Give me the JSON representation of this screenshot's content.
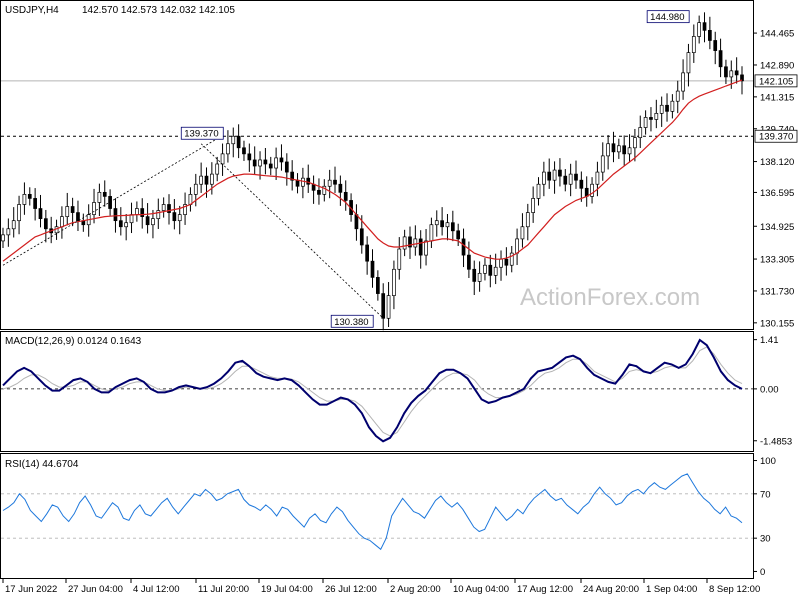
{
  "chart_data": [
    {
      "type": "candlestick",
      "panel": "price",
      "symbol_label": "USDJPY,H4",
      "ohlc_label": "142.570 142.573 142.032 142.105",
      "ylim": [
        129.9,
        146.0
      ],
      "y_ticks": [
        "144.465",
        "142.890",
        "141.315",
        "139.740",
        "138.120",
        "136.595",
        "134.925",
        "133.305",
        "131.730",
        "130.155"
      ],
      "y_tick_values": [
        144.465,
        142.89,
        141.315,
        139.74,
        138.12,
        136.595,
        134.925,
        133.305,
        131.73,
        130.155
      ],
      "current_price_label": "142.105",
      "current_price": 142.105,
      "level_label": "139.370",
      "level": 139.37,
      "annotations": [
        {
          "label": "139.370",
          "value": 139.37
        },
        {
          "label": "130.380",
          "value": 130.38
        },
        {
          "label": "144.980",
          "value": 144.98
        }
      ],
      "watermark": "ActionForex.com",
      "close_series": [
        134.5,
        134.8,
        135.2,
        136.0,
        136.5,
        136.3,
        135.8,
        135.3,
        134.8,
        134.6,
        134.9,
        135.4,
        135.9,
        135.6,
        135.2,
        135.0,
        135.5,
        136.1,
        136.6,
        136.4,
        135.8,
        135.2,
        134.9,
        135.1,
        135.5,
        135.8,
        135.4,
        135.0,
        135.3,
        135.7,
        136.0,
        135.6,
        135.2,
        135.5,
        136.0,
        136.5,
        137.0,
        137.4,
        137.0,
        137.5,
        138.0,
        138.5,
        139.0,
        139.37,
        138.8,
        138.5,
        138.2,
        137.9,
        138.2,
        138.0,
        137.8,
        138.3,
        138.1,
        137.6,
        137.2,
        136.9,
        137.3,
        137.0,
        136.7,
        136.5,
        136.9,
        137.2,
        137.0,
        136.6,
        136.2,
        135.5,
        134.8,
        134.0,
        133.2,
        132.4,
        131.6,
        130.38,
        131.5,
        132.8,
        133.8,
        134.4,
        133.9,
        134.3,
        133.5,
        134.2,
        135.0,
        135.2,
        134.9,
        135.1,
        134.7,
        134.3,
        133.5,
        132.8,
        132.2,
        132.6,
        133.0,
        132.5,
        132.9,
        133.3,
        133.0,
        133.6,
        134.3,
        134.9,
        135.6,
        136.3,
        137.0,
        137.6,
        137.2,
        137.7,
        137.4,
        137.0,
        137.5,
        137.2,
        136.8,
        136.4,
        137.0,
        137.6,
        138.4,
        139.0,
        138.6,
        138.9,
        138.5,
        138.8,
        139.3,
        139.8,
        140.3,
        140.2,
        140.5,
        140.9,
        140.6,
        141.1,
        141.6,
        142.5,
        143.5,
        144.3,
        144.98,
        144.6,
        144.1,
        143.6,
        142.8,
        142.3,
        142.6,
        142.4,
        142.105
      ],
      "sma_series_color": "#d21f1f",
      "sma_series": [
        133.2,
        133.4,
        133.6,
        133.8,
        134.0,
        134.2,
        134.4,
        134.5,
        134.6,
        134.7,
        134.8,
        134.9,
        135.0,
        135.1,
        135.15,
        135.2,
        135.25,
        135.3,
        135.35,
        135.4,
        135.42,
        135.44,
        135.45,
        135.46,
        135.48,
        135.5,
        135.5,
        135.52,
        135.55,
        135.6,
        135.65,
        135.7,
        135.75,
        135.8,
        135.9,
        136.0,
        136.2,
        136.4,
        136.6,
        136.8,
        137.0,
        137.15,
        137.3,
        137.4,
        137.45,
        137.5,
        137.5,
        137.48,
        137.45,
        137.42,
        137.4,
        137.38,
        137.35,
        137.3,
        137.25,
        137.2,
        137.15,
        137.1,
        137.0,
        136.9,
        136.8,
        136.65,
        136.5,
        136.3,
        136.1,
        135.8,
        135.5,
        135.2,
        134.9,
        134.6,
        134.3,
        134.1,
        133.95,
        133.9,
        133.9,
        133.95,
        134.0,
        134.05,
        134.1,
        134.15,
        134.2,
        134.25,
        134.3,
        134.3,
        134.25,
        134.2,
        134.0,
        133.8,
        133.6,
        133.5,
        133.4,
        133.35,
        133.3,
        133.3,
        133.35,
        133.45,
        133.6,
        133.8,
        134.0,
        134.3,
        134.6,
        134.9,
        135.2,
        135.5,
        135.7,
        135.9,
        136.05,
        136.2,
        136.3,
        136.4,
        136.55,
        136.75,
        137.0,
        137.25,
        137.5,
        137.7,
        137.9,
        138.1,
        138.3,
        138.55,
        138.8,
        139.05,
        139.3,
        139.55,
        139.8,
        140.05,
        140.35,
        140.7,
        141.0,
        141.2,
        141.35,
        141.45,
        141.55,
        141.65,
        141.75,
        141.85,
        141.95,
        142.05,
        142.15
      ]
    },
    {
      "type": "line",
      "panel": "macd",
      "label": "MACD(12,26,9) 0.0124 0.1643",
      "ylim": [
        -1.75,
        1.6
      ],
      "y_ticks": [
        "1.41",
        "0.00",
        "-1.4853"
      ],
      "y_tick_values": [
        1.41,
        0.0,
        -1.4853
      ],
      "series": [
        {
          "name": "MACD",
          "color": "#00006e",
          "values": [
            0.1,
            0.3,
            0.5,
            0.6,
            0.5,
            0.3,
            0.1,
            -0.05,
            -0.05,
            0.1,
            0.25,
            0.3,
            0.2,
            0.0,
            -0.1,
            -0.1,
            0.05,
            0.15,
            0.25,
            0.3,
            0.2,
            0.0,
            -0.1,
            -0.1,
            -0.05,
            0.05,
            0.1,
            0.05,
            0.0,
            0.05,
            0.15,
            0.3,
            0.5,
            0.75,
            0.8,
            0.65,
            0.45,
            0.35,
            0.3,
            0.25,
            0.3,
            0.25,
            0.1,
            -0.1,
            -0.3,
            -0.45,
            -0.45,
            -0.35,
            -0.25,
            -0.3,
            -0.45,
            -0.7,
            -1.1,
            -1.35,
            -1.5,
            -1.4,
            -1.1,
            -0.7,
            -0.4,
            -0.2,
            -0.05,
            0.2,
            0.45,
            0.55,
            0.55,
            0.45,
            0.3,
            0.0,
            -0.3,
            -0.4,
            -0.35,
            -0.25,
            -0.2,
            -0.1,
            0.0,
            0.3,
            0.5,
            0.55,
            0.6,
            0.75,
            0.9,
            0.95,
            0.85,
            0.6,
            0.4,
            0.3,
            0.2,
            0.15,
            0.4,
            0.7,
            0.65,
            0.5,
            0.45,
            0.6,
            0.75,
            0.7,
            0.6,
            0.7,
            1.0,
            1.4,
            1.25,
            0.9,
            0.5,
            0.25,
            0.1,
            0.0
          ]
        },
        {
          "name": "Signal",
          "color": "#b4b4b4",
          "values": [
            0.0,
            0.05,
            0.15,
            0.3,
            0.4,
            0.4,
            0.3,
            0.15,
            0.05,
            0.05,
            0.1,
            0.2,
            0.2,
            0.1,
            0.0,
            -0.05,
            0.0,
            0.05,
            0.15,
            0.2,
            0.2,
            0.1,
            0.0,
            -0.05,
            -0.05,
            0.0,
            0.05,
            0.05,
            0.0,
            0.0,
            0.05,
            0.15,
            0.3,
            0.5,
            0.65,
            0.65,
            0.55,
            0.45,
            0.35,
            0.3,
            0.3,
            0.28,
            0.2,
            0.05,
            -0.1,
            -0.25,
            -0.35,
            -0.35,
            -0.3,
            -0.3,
            -0.35,
            -0.5,
            -0.75,
            -1.0,
            -1.25,
            -1.35,
            -1.25,
            -0.95,
            -0.65,
            -0.4,
            -0.2,
            0.0,
            0.2,
            0.35,
            0.45,
            0.45,
            0.4,
            0.25,
            0.0,
            -0.15,
            -0.25,
            -0.25,
            -0.2,
            -0.15,
            -0.05,
            0.1,
            0.3,
            0.45,
            0.5,
            0.6,
            0.75,
            0.85,
            0.85,
            0.7,
            0.5,
            0.4,
            0.3,
            0.2,
            0.3,
            0.5,
            0.55,
            0.5,
            0.45,
            0.5,
            0.6,
            0.65,
            0.6,
            0.6,
            0.8,
            1.1,
            1.2,
            1.0,
            0.7,
            0.45,
            0.25,
            0.15
          ]
        }
      ]
    },
    {
      "type": "line",
      "panel": "rsi",
      "label": "RSI(14) 44.6704",
      "ylim": [
        -5,
        105
      ],
      "y_ticks": [
        "100",
        "70",
        "30",
        "0"
      ],
      "y_tick_values": [
        100,
        70,
        30,
        0
      ],
      "levels": [
        70,
        30
      ],
      "series": [
        {
          "name": "RSI",
          "color": "#1e78dc",
          "values": [
            55,
            58,
            62,
            70,
            65,
            55,
            50,
            45,
            52,
            60,
            58,
            50,
            45,
            52,
            62,
            68,
            60,
            50,
            48,
            55,
            62,
            58,
            48,
            46,
            55,
            60,
            52,
            50,
            56,
            62,
            66,
            58,
            52,
            58,
            64,
            70,
            68,
            74,
            70,
            64,
            66,
            70,
            72,
            74,
            65,
            60,
            58,
            55,
            60,
            56,
            50,
            58,
            56,
            50,
            45,
            40,
            48,
            52,
            46,
            44,
            52,
            58,
            54,
            46,
            40,
            34,
            30,
            28,
            24,
            20,
            30,
            50,
            58,
            66,
            60,
            54,
            52,
            48,
            56,
            64,
            68,
            62,
            58,
            62,
            56,
            48,
            40,
            36,
            38,
            48,
            58,
            52,
            46,
            50,
            56,
            52,
            60,
            66,
            70,
            74,
            68,
            64,
            66,
            60,
            56,
            52,
            58,
            62,
            70,
            76,
            70,
            66,
            60,
            62,
            68,
            72,
            74,
            70,
            76,
            80,
            76,
            74,
            78,
            82,
            86,
            88,
            80,
            72,
            66,
            62,
            56,
            52,
            58,
            50,
            48,
            44
          ]
        }
      ]
    }
  ],
  "x_axis": {
    "labels": [
      "17 Jun 2022",
      "27 Jun 04:00",
      "4 Jul 12:00",
      "11 Jul 20:00",
      "19 Jul 04:00",
      "26 Jul 12:00",
      "2 Aug 20:00",
      "10 Aug 04:00",
      "17 Aug 12:00",
      "24 Aug 20:00",
      "1 Sep 04:00",
      "8 Sep 12:00"
    ]
  },
  "colors": {
    "background": "#ffffff",
    "axis_line": "#000000",
    "grid_dashed": "#000000",
    "candle": "#000000",
    "watermark": "#c8c8c8",
    "price_label_bg": "#ffffff",
    "annotation_border": "#00006e",
    "annotation_text": "#00006e"
  }
}
